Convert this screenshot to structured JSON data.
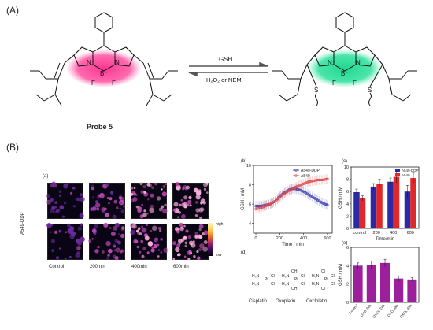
{
  "figure": {
    "panel_A_label": "(A)",
    "panel_B_label": "(B)",
    "probe_label": "Probe 5",
    "forward_reagent": "GSH",
    "reverse_reagent": "H₂O₂ or NEM"
  },
  "structure_atoms": {
    "n_plus": "N⁺",
    "n": "N",
    "b_minus": "B⁻",
    "f": "F",
    "s": "S"
  },
  "subpanel_a": {
    "label": "(a)",
    "row_label": "A549-DDP",
    "columns": [
      "Control",
      "200min",
      "400min",
      "600min"
    ],
    "colorbar_high": "high",
    "colorbar_low": "low"
  },
  "subpanel_d": {
    "label": "(d)",
    "names": [
      "Cisplatin",
      "Oxoplatin",
      "Oxclplatin"
    ]
  },
  "chart_data": [
    {
      "id": "b",
      "type": "line",
      "panel_label": "(b)",
      "xlabel": "Time / min",
      "ylabel": "GSH / mM",
      "xlim": [
        -20,
        640
      ],
      "ylim": [
        3,
        10
      ],
      "xticks": [
        0,
        200,
        400,
        600
      ],
      "yticks": [
        4,
        6,
        8,
        10
      ],
      "legend_position": "top-right",
      "series": [
        {
          "name": "A549-DDP",
          "color": "#3b3bb0",
          "x": [
            0,
            40,
            80,
            120,
            160,
            200,
            240,
            280,
            320,
            360,
            400,
            440,
            480,
            520,
            560,
            600
          ],
          "y": [
            5.8,
            5.8,
            5.9,
            6.0,
            6.3,
            6.8,
            7.2,
            7.5,
            7.6,
            7.5,
            7.3,
            7.0,
            6.7,
            6.4,
            6.1,
            5.9
          ]
        },
        {
          "name": "A549",
          "color": "#e04848",
          "x": [
            0,
            40,
            80,
            120,
            160,
            200,
            240,
            280,
            320,
            360,
            400,
            440,
            480,
            520,
            560,
            600
          ],
          "y": [
            5.5,
            5.6,
            5.8,
            6.0,
            6.3,
            6.7,
            7.1,
            7.4,
            7.7,
            7.9,
            8.1,
            8.3,
            8.4,
            8.5,
            8.5,
            8.6
          ]
        }
      ]
    },
    {
      "id": "c",
      "type": "bar",
      "panel_label": "(c)",
      "xlabel": "Time/min",
      "ylabel": "GSH / mM",
      "ylim": [
        0,
        10
      ],
      "yticks": [
        0,
        2,
        4,
        6,
        8,
        10
      ],
      "categories": [
        "control",
        "200",
        "400",
        "600"
      ],
      "legend_position": "top-right",
      "series": [
        {
          "name": "A549-DDP",
          "color": "#2a2aa8",
          "values": [
            5.9,
            6.8,
            7.6,
            6.0
          ]
        },
        {
          "name": "A549",
          "color": "#e02828",
          "values": [
            4.9,
            7.3,
            8.4,
            8.2
          ]
        }
      ]
    },
    {
      "id": "e",
      "type": "bar",
      "panel_label": "(e)",
      "xlabel": "",
      "ylabel": "GSH / mM",
      "ylim": [
        0,
        6
      ],
      "yticks": [
        0,
        2,
        4,
        6
      ],
      "categories": [
        "Control",
        "OXO-24h",
        "OXCL-24h",
        "OXO-48h",
        "OXCL-48h"
      ],
      "series": [
        {
          "name": "",
          "color": "#9c1f9c",
          "values": [
            4.0,
            4.1,
            4.3,
            2.6,
            2.5
          ]
        }
      ]
    }
  ]
}
